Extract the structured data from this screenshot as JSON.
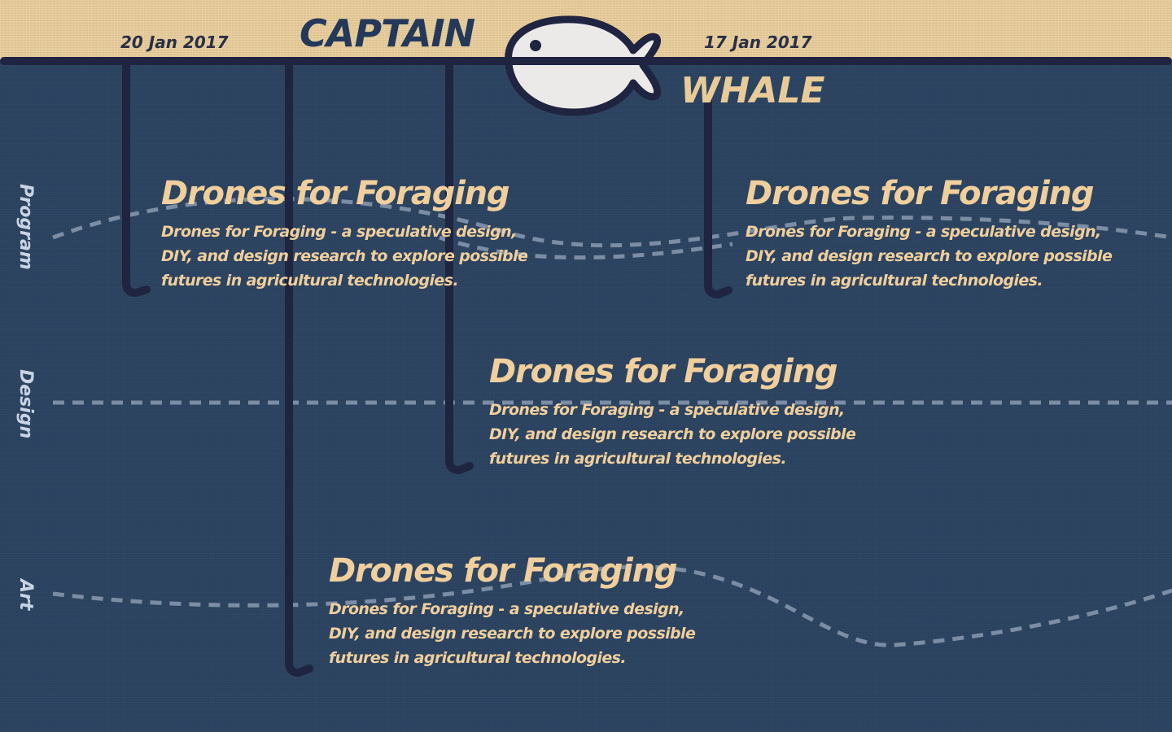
{
  "header": {
    "date_left": "20 Jan 2017",
    "date_right": "17 Jan 2017",
    "brand_top": "CAPTAIN",
    "brand_bottom": "WHALE",
    "logo_icon": "whale-fish-icon"
  },
  "lanes": [
    {
      "label": "Program"
    },
    {
      "label": "Design"
    },
    {
      "label": "Art"
    }
  ],
  "cards": [
    {
      "title": "Drones for Foraging",
      "description": "Drones for Foraging - a speculative design, DIY, and design research to explore possible futures in agricultural technologies."
    },
    {
      "title": "Drones for Foraging",
      "description": "Drones for Foraging - a speculative design, DIY, and design research to explore possible futures in agricultural technologies."
    },
    {
      "title": "Drones for Foraging",
      "description": "Drones for Foraging - a speculative design, DIY, and design research to explore possible futures in agricultural technologies."
    },
    {
      "title": "Drones for Foraging",
      "description": "Drones for Foraging - a speculative design, DIY, and design research to explore possible futures in agricultural technologies."
    }
  ],
  "colors": {
    "background": "#2b4360",
    "header_band": "#e5cb9a",
    "rule_and_hooks": "#1f2440",
    "card_text": "#f0cf9c",
    "lane_label": "#c9d3e3",
    "dashed_lane": "#8a9ab0"
  }
}
